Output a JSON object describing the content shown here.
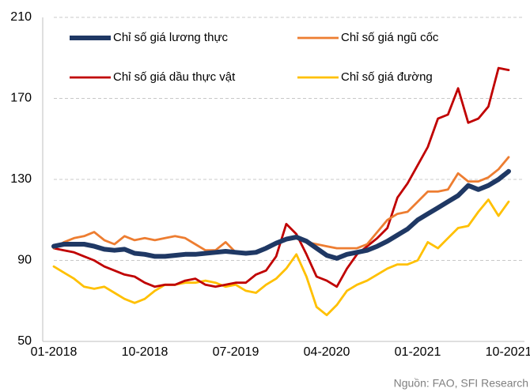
{
  "chart_data": {
    "type": "line",
    "categories": [
      "01-2018",
      null,
      null,
      null,
      null,
      null,
      null,
      null,
      null,
      "10-2018",
      null,
      null,
      null,
      null,
      null,
      null,
      null,
      null,
      "07-2019",
      null,
      null,
      null,
      null,
      null,
      null,
      null,
      null,
      "04-2020",
      null,
      null,
      null,
      null,
      null,
      null,
      null,
      null,
      "01-2021",
      null,
      null,
      null,
      null,
      null,
      null,
      null,
      null,
      "10-2021"
    ],
    "series": [
      {
        "name": "Chỉ số giá lương thực",
        "color": "#1f3864",
        "values": [
          97,
          98,
          98,
          98,
          97,
          95.5,
          95,
          95.5,
          93.5,
          93,
          92,
          92,
          92.5,
          93,
          93,
          93.5,
          94,
          94.5,
          94,
          93.5,
          94,
          96,
          98.5,
          100.5,
          101.5,
          99.5,
          96,
          92.5,
          91,
          93,
          94,
          95,
          97,
          99.5,
          102.5,
          105.5,
          110,
          113,
          116,
          119,
          122,
          127,
          125,
          127,
          130,
          134
        ]
      },
      {
        "name": "Chỉ số giá ngũ cốc",
        "color": "#ed7d31",
        "values": [
          96,
          99,
          101,
          102,
          104,
          100,
          98,
          102,
          100,
          101,
          100,
          101,
          102,
          101,
          98,
          95,
          95,
          99,
          94,
          93,
          94,
          96,
          98,
          100,
          101,
          99,
          98,
          97,
          96,
          96,
          96,
          98,
          104,
          110,
          113,
          114,
          119,
          124,
          124,
          125,
          133,
          129,
          129,
          131,
          135,
          141
        ]
      },
      {
        "name": "Chỉ số giá dầu thực vật",
        "color": "#c00000",
        "values": [
          96,
          95,
          94,
          92,
          90,
          87,
          85,
          83,
          82,
          79,
          77,
          78,
          78,
          80,
          81,
          78,
          77,
          78,
          79,
          79,
          83,
          85,
          92,
          108,
          103,
          93,
          82,
          80,
          77,
          86,
          93,
          97,
          101,
          106,
          121,
          128,
          137,
          146,
          160,
          162,
          175,
          158,
          160,
          166,
          185,
          184
        ]
      },
      {
        "name": "Chỉ số giá đường",
        "color": "#ffc000",
        "values": [
          87,
          84,
          81,
          77,
          76,
          77,
          74,
          71,
          69,
          71,
          75,
          78,
          78,
          79,
          79,
          80,
          79,
          77,
          78,
          75,
          74,
          78,
          81,
          86,
          93,
          82,
          67,
          63,
          68,
          75,
          78,
          80,
          83,
          86,
          88,
          88,
          90,
          99,
          96,
          101,
          106,
          107,
          114,
          120,
          112,
          119
        ]
      }
    ],
    "ylim": [
      50,
      210
    ],
    "yticks": [
      50,
      90,
      130,
      170,
      210
    ],
    "grid": true,
    "legend": "top",
    "source": "Nguồn: FAO, SFI Research"
  }
}
